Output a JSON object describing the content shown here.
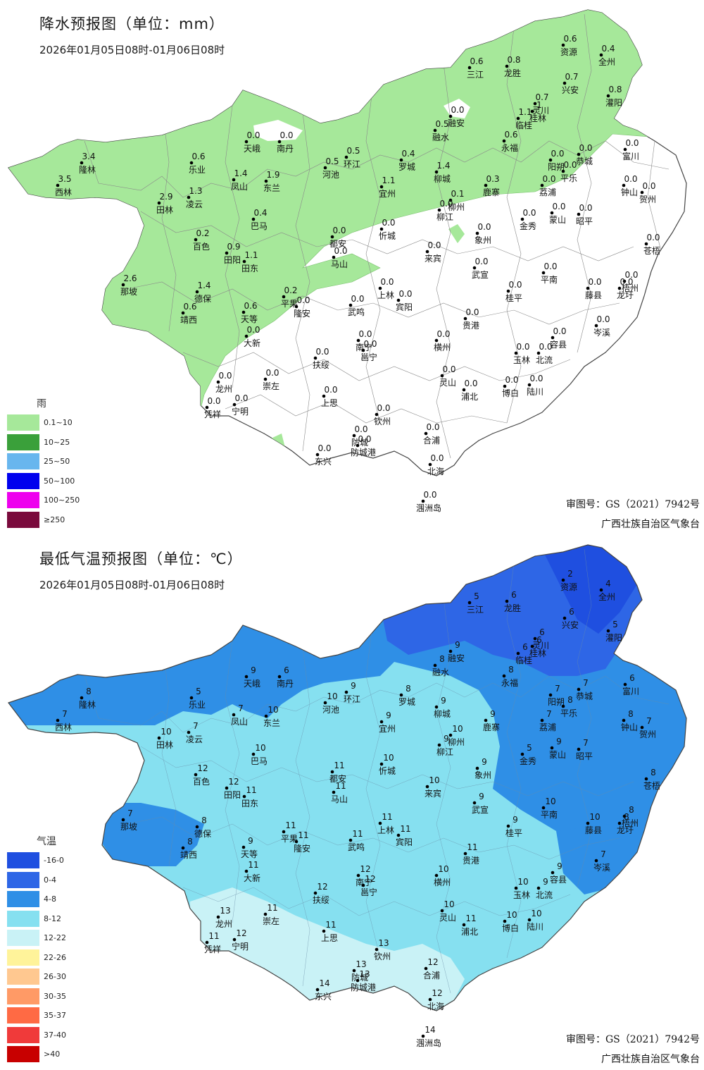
{
  "rain_map": {
    "title": "降水预报图（单位：mm）",
    "subtitle": "2026年01月05日08时-01月06日08时",
    "legend": {
      "title": "雨",
      "items": [
        {
          "label": "0.1~10",
          "color": "#a6e89a"
        },
        {
          "label": "10~25",
          "color": "#3aa03a"
        },
        {
          "label": "25~50",
          "color": "#68b6ee"
        },
        {
          "label": "50~100",
          "color": "#0000ee"
        },
        {
          "label": "100~250",
          "color": "#ee00ee"
        },
        {
          "label": "≥250",
          "color": "#7a0a3c"
        }
      ]
    },
    "footer": {
      "line1": "审图号：GS（2021）7942号",
      "line2": "广西壮族自治区气象台"
    }
  },
  "temp_map": {
    "title": "最低气温预报图（单位：℃）",
    "subtitle": "2026年01月05日08时-01月06日08时",
    "legend": {
      "title": "气温",
      "items": [
        {
          "label": "-16-0",
          "color": "#1f4fe0"
        },
        {
          "label": "0-4",
          "color": "#2e66e6"
        },
        {
          "label": "4-8",
          "color": "#2f8fe6"
        },
        {
          "label": "8-12",
          "color": "#86e0f0"
        },
        {
          "label": "12-22",
          "color": "#c9f2f6"
        },
        {
          "label": "22-26",
          "color": "#fff39a"
        },
        {
          "label": "26-30",
          "color": "#ffc890"
        },
        {
          "label": "30-35",
          "color": "#ff9a66"
        },
        {
          "label": "35-37",
          "color": "#ff6a44"
        },
        {
          "label": "37-40",
          "color": "#f03a3a"
        },
        {
          "label": ">40",
          "color": "#c80000"
        }
      ]
    },
    "footer": {
      "line1": "审图号：GS（2021）7942号",
      "line2": "广西壮族自治区气象台"
    }
  },
  "stations": [
    {
      "name": "资源",
      "rain": "0.6",
      "tmin": "2"
    },
    {
      "name": "全州",
      "rain": "0.4",
      "tmin": "4"
    },
    {
      "name": "三江",
      "rain": "0.6",
      "tmin": "5"
    },
    {
      "name": "龙胜",
      "rain": "0.8",
      "tmin": "6"
    },
    {
      "name": "兴安",
      "rain": "0.7",
      "tmin": "6"
    },
    {
      "name": "灌阳",
      "rain": "0.8",
      "tmin": "5"
    },
    {
      "name": "灵川",
      "rain": "0.7",
      "tmin": "6"
    },
    {
      "name": "桂林",
      "rain": "1",
      "tmin": "6"
    },
    {
      "name": "临桂",
      "rain": "1.1",
      "tmin": "6"
    },
    {
      "name": "融安",
      "rain": "0.0",
      "tmin": "9"
    },
    {
      "name": "融水",
      "rain": "0.5",
      "tmin": "8"
    },
    {
      "name": "永福",
      "rain": "0.6",
      "tmin": "8"
    },
    {
      "name": "天峨",
      "rain": "0.0",
      "tmin": "9"
    },
    {
      "name": "南丹",
      "rain": "0.0",
      "tmin": "6"
    },
    {
      "name": "富川",
      "rain": "0.0",
      "tmin": "6"
    },
    {
      "name": "恭城",
      "rain": "0.0",
      "tmin": "7"
    },
    {
      "name": "阳朔",
      "rain": "0.0",
      "tmin": "7"
    },
    {
      "name": "平乐",
      "rain": "0.0",
      "tmin": "8"
    },
    {
      "name": "乐业",
      "rain": "0.6",
      "tmin": "5"
    },
    {
      "name": "环江",
      "rain": "0.5",
      "tmin": "9"
    },
    {
      "name": "河池",
      "rain": "0.5",
      "tmin": "10"
    },
    {
      "name": "罗城",
      "rain": "0.4",
      "tmin": "8"
    },
    {
      "name": "隆林",
      "rain": "3.4",
      "tmin": "8"
    },
    {
      "name": "西林",
      "rain": "3.5",
      "tmin": "7"
    },
    {
      "name": "凤山",
      "rain": "1.4",
      "tmin": "7"
    },
    {
      "name": "东兰",
      "rain": "1.9",
      "tmin": "10"
    },
    {
      "name": "柳城",
      "rain": "1.4",
      "tmin": "9"
    },
    {
      "name": "宜州",
      "rain": "1.1",
      "tmin": "9"
    },
    {
      "name": "鹿寨",
      "rain": "0.3",
      "tmin": "9"
    },
    {
      "name": "荔浦",
      "rain": "0.0",
      "tmin": "7"
    },
    {
      "name": "钟山",
      "rain": "0.0",
      "tmin": "8"
    },
    {
      "name": "贺州",
      "rain": "0.0",
      "tmin": "7"
    },
    {
      "name": "田林",
      "rain": "2.9",
      "tmin": "10"
    },
    {
      "name": "凌云",
      "rain": "1.3",
      "tmin": "7"
    },
    {
      "name": "柳州",
      "rain": "0.1",
      "tmin": "10"
    },
    {
      "name": "柳江",
      "rain": "0.0",
      "tmin": "9"
    },
    {
      "name": "巴马",
      "rain": "0.4",
      "tmin": "10"
    },
    {
      "name": "金秀",
      "rain": "0.0",
      "tmin": "5"
    },
    {
      "name": "蒙山",
      "rain": "0.0",
      "tmin": "9"
    },
    {
      "name": "昭平",
      "rain": "0.0",
      "tmin": "7"
    },
    {
      "name": "忻城",
      "rain": "0.0",
      "tmin": "10"
    },
    {
      "name": "百色",
      "rain": "0.2",
      "tmin": "12"
    },
    {
      "name": "都安",
      "rain": "0.0",
      "tmin": "11"
    },
    {
      "name": "象州",
      "rain": "0.0",
      "tmin": "9"
    },
    {
      "name": "苍梧",
      "rain": "0.0",
      "tmin": "8"
    },
    {
      "name": "田阳",
      "rain": "0.9",
      "tmin": "12"
    },
    {
      "name": "田东",
      "rain": "1.1",
      "tmin": "11"
    },
    {
      "name": "马山",
      "rain": "0.0",
      "tmin": "11"
    },
    {
      "name": "来宾",
      "rain": "0.0",
      "tmin": "10"
    },
    {
      "name": "武宣",
      "rain": "0.0",
      "tmin": "9"
    },
    {
      "name": "平南",
      "rain": "0.0",
      "tmin": "10"
    },
    {
      "name": "那坡",
      "rain": "2.6",
      "tmin": "7"
    },
    {
      "name": "德保",
      "rain": "1.4",
      "tmin": "8"
    },
    {
      "name": "藤县",
      "rain": "0.0",
      "tmin": "10"
    },
    {
      "name": "梧州",
      "rain": "0.0",
      "tmin": "8"
    },
    {
      "name": "龙圩",
      "rain": "0.0",
      "tmin": "8"
    },
    {
      "name": "平果",
      "rain": "0.2",
      "tmin": "11"
    },
    {
      "name": "上林",
      "rain": "0.0",
      "tmin": "11"
    },
    {
      "name": "宾阳",
      "rain": "0.0",
      "tmin": "11"
    },
    {
      "name": "靖西",
      "rain": "0.6",
      "tmin": "8"
    },
    {
      "name": "天等",
      "rain": "0.6",
      "tmin": "9"
    },
    {
      "name": "隆安",
      "rain": "0.0",
      "tmin": "11"
    },
    {
      "name": "武鸣",
      "rain": "0.0",
      "tmin": "11"
    },
    {
      "name": "桂平",
      "rain": "0.0",
      "tmin": "9"
    },
    {
      "name": "贵港",
      "rain": "0.0",
      "tmin": "11"
    },
    {
      "name": "岑溪",
      "rain": "0.0",
      "tmin": "7"
    },
    {
      "name": "大新",
      "rain": "0.0",
      "tmin": "11"
    },
    {
      "name": "南宁",
      "rain": "0.0",
      "tmin": "12"
    },
    {
      "name": "邕宁",
      "rain": "0.0",
      "tmin": "12"
    },
    {
      "name": "横州",
      "rain": "0.0",
      "tmin": "10"
    },
    {
      "name": "容县",
      "rain": "0.0",
      "tmin": "9"
    },
    {
      "name": "玉林",
      "rain": "0.0",
      "tmin": "10"
    },
    {
      "name": "北流",
      "rain": "0.0",
      "tmin": "9"
    },
    {
      "name": "扶绥",
      "rain": "0.0",
      "tmin": "12"
    },
    {
      "name": "崇左",
      "rain": "0.0",
      "tmin": "11"
    },
    {
      "name": "龙州",
      "rain": "0.0",
      "tmin": "13"
    },
    {
      "name": "灵山",
      "rain": "0.0",
      "tmin": "10"
    },
    {
      "name": "浦北",
      "rain": "0.0",
      "tmin": "11"
    },
    {
      "name": "博白",
      "rain": "0.0",
      "tmin": "10"
    },
    {
      "name": "陆川",
      "rain": "0.0",
      "tmin": "10"
    },
    {
      "name": "宁明",
      "rain": "0.0",
      "tmin": "12"
    },
    {
      "name": "凭祥",
      "rain": "0.0",
      "tmin": "11"
    },
    {
      "name": "上思",
      "rain": "0.0",
      "tmin": "11"
    },
    {
      "name": "钦州",
      "rain": "0.0",
      "tmin": "13"
    },
    {
      "name": "防城",
      "rain": "0.0",
      "tmin": "13"
    },
    {
      "name": "防城港",
      "rain": "0.0",
      "tmin": "13"
    },
    {
      "name": "合浦",
      "rain": "0.0",
      "tmin": "12"
    },
    {
      "name": "东兴",
      "rain": "0.0",
      "tmin": "14"
    },
    {
      "name": "北海",
      "rain": "0.0",
      "tmin": "12"
    },
    {
      "name": "涠洲岛",
      "rain": "0.0",
      "tmin": "14"
    }
  ]
}
